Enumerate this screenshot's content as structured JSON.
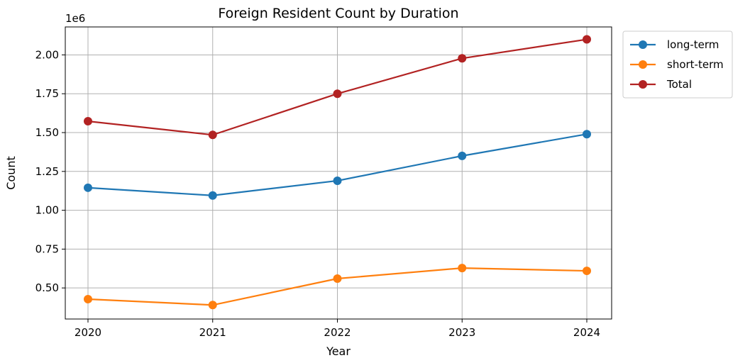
{
  "chart_data": {
    "type": "line",
    "title": "Foreign Resident Count by Duration",
    "xlabel": "Year",
    "ylabel": "Count",
    "y_offset_label": "1e6",
    "x": [
      "2020",
      "2021",
      "2022",
      "2023",
      "2024"
    ],
    "y_ticks": [
      "0.50",
      "0.75",
      "1.00",
      "1.25",
      "1.50",
      "1.75",
      "2.00"
    ],
    "y_tick_values": [
      500000,
      750000,
      1000000,
      1250000,
      1500000,
      1750000,
      2000000
    ],
    "ylim": [
      300000,
      2180000
    ],
    "grid": true,
    "legend_position": "outside top-right",
    "series": [
      {
        "name": "long-term",
        "color": "#1f77b4",
        "values": [
          1145000,
          1095000,
          1190000,
          1350000,
          1490000
        ]
      },
      {
        "name": "short-term",
        "color": "#ff7f0e",
        "values": [
          428000,
          390000,
          560000,
          628000,
          610000
        ]
      },
      {
        "name": "Total",
        "color": "#b22222",
        "values": [
          1573000,
          1485000,
          1750000,
          1978000,
          2100000
        ]
      }
    ]
  }
}
